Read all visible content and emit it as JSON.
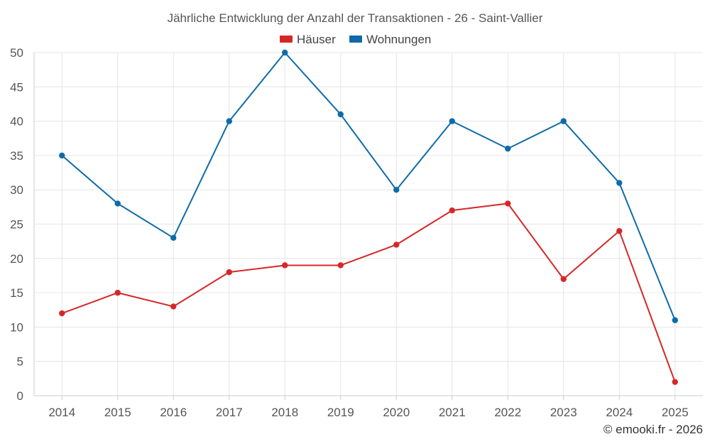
{
  "chart_data": {
    "type": "line",
    "title": "Jährliche Entwicklung der Anzahl der Transaktionen - 26 - Saint-Vallier",
    "categories": [
      "2014",
      "2015",
      "2016",
      "2017",
      "2018",
      "2019",
      "2020",
      "2021",
      "2022",
      "2023",
      "2024",
      "2025"
    ],
    "series": [
      {
        "name": "Häuser",
        "color": "#d62728",
        "values": [
          12,
          15,
          13,
          18,
          19,
          19,
          22,
          27,
          28,
          17,
          24,
          2
        ]
      },
      {
        "name": "Wohnungen",
        "color": "#0e6ba8",
        "values": [
          35,
          28,
          23,
          40,
          50,
          41,
          30,
          40,
          36,
          40,
          31,
          11
        ]
      }
    ],
    "ylim": [
      0,
      50
    ],
    "yticks": [
      0,
      5,
      10,
      15,
      20,
      25,
      30,
      35,
      40,
      45,
      50
    ],
    "xlabel": "",
    "ylabel": "",
    "grid": true,
    "legend_position": "top-center"
  },
  "credit": "© emooki.fr - 2026"
}
